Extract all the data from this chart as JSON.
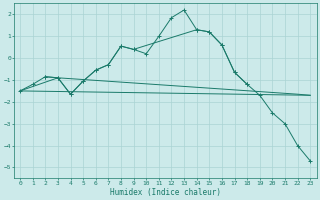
{
  "title": "",
  "xlabel": "Humidex (Indice chaleur)",
  "bg_color": "#cceaea",
  "line_color": "#1a7a6a",
  "grid_color": "#aad4d4",
  "xlim": [
    -0.5,
    23.5
  ],
  "ylim": [
    -5.5,
    2.5
  ],
  "yticks": [
    2,
    1,
    0,
    -1,
    -2,
    -3,
    -4,
    -5
  ],
  "xticks": [
    0,
    1,
    2,
    3,
    4,
    5,
    6,
    7,
    8,
    9,
    10,
    11,
    12,
    13,
    14,
    15,
    16,
    17,
    18,
    19,
    20,
    21,
    22,
    23
  ],
  "series": [
    {
      "x": [
        0,
        1,
        2,
        3,
        4,
        5,
        6,
        7,
        8,
        9,
        10,
        11,
        12,
        13,
        14,
        15,
        16,
        17,
        18,
        19,
        20,
        21,
        22,
        23
      ],
      "y": [
        -1.5,
        -1.2,
        -0.85,
        -0.9,
        -1.65,
        -1.05,
        -0.55,
        -0.3,
        0.55,
        0.4,
        0.2,
        1.0,
        1.85,
        2.2,
        1.3,
        1.2,
        0.6,
        -0.65,
        -1.2,
        -1.7,
        -2.5,
        -3.0,
        -4.0,
        -4.7
      ],
      "marker": true
    },
    {
      "x": [
        2,
        3,
        4,
        5,
        6,
        7,
        8,
        9,
        14,
        15,
        16,
        17,
        18
      ],
      "y": [
        -0.85,
        -0.9,
        -1.65,
        -1.05,
        -0.55,
        -0.3,
        0.55,
        0.4,
        1.3,
        1.2,
        0.6,
        -0.65,
        -1.2
      ],
      "marker": true
    },
    {
      "x": [
        0,
        3,
        22,
        23
      ],
      "y": [
        -1.5,
        -0.9,
        -1.65,
        -1.7
      ],
      "marker": false
    },
    {
      "x": [
        0,
        23
      ],
      "y": [
        -1.5,
        -1.7
      ],
      "marker": false
    }
  ],
  "dpi": 100,
  "figsize": [
    3.2,
    2.0
  ]
}
